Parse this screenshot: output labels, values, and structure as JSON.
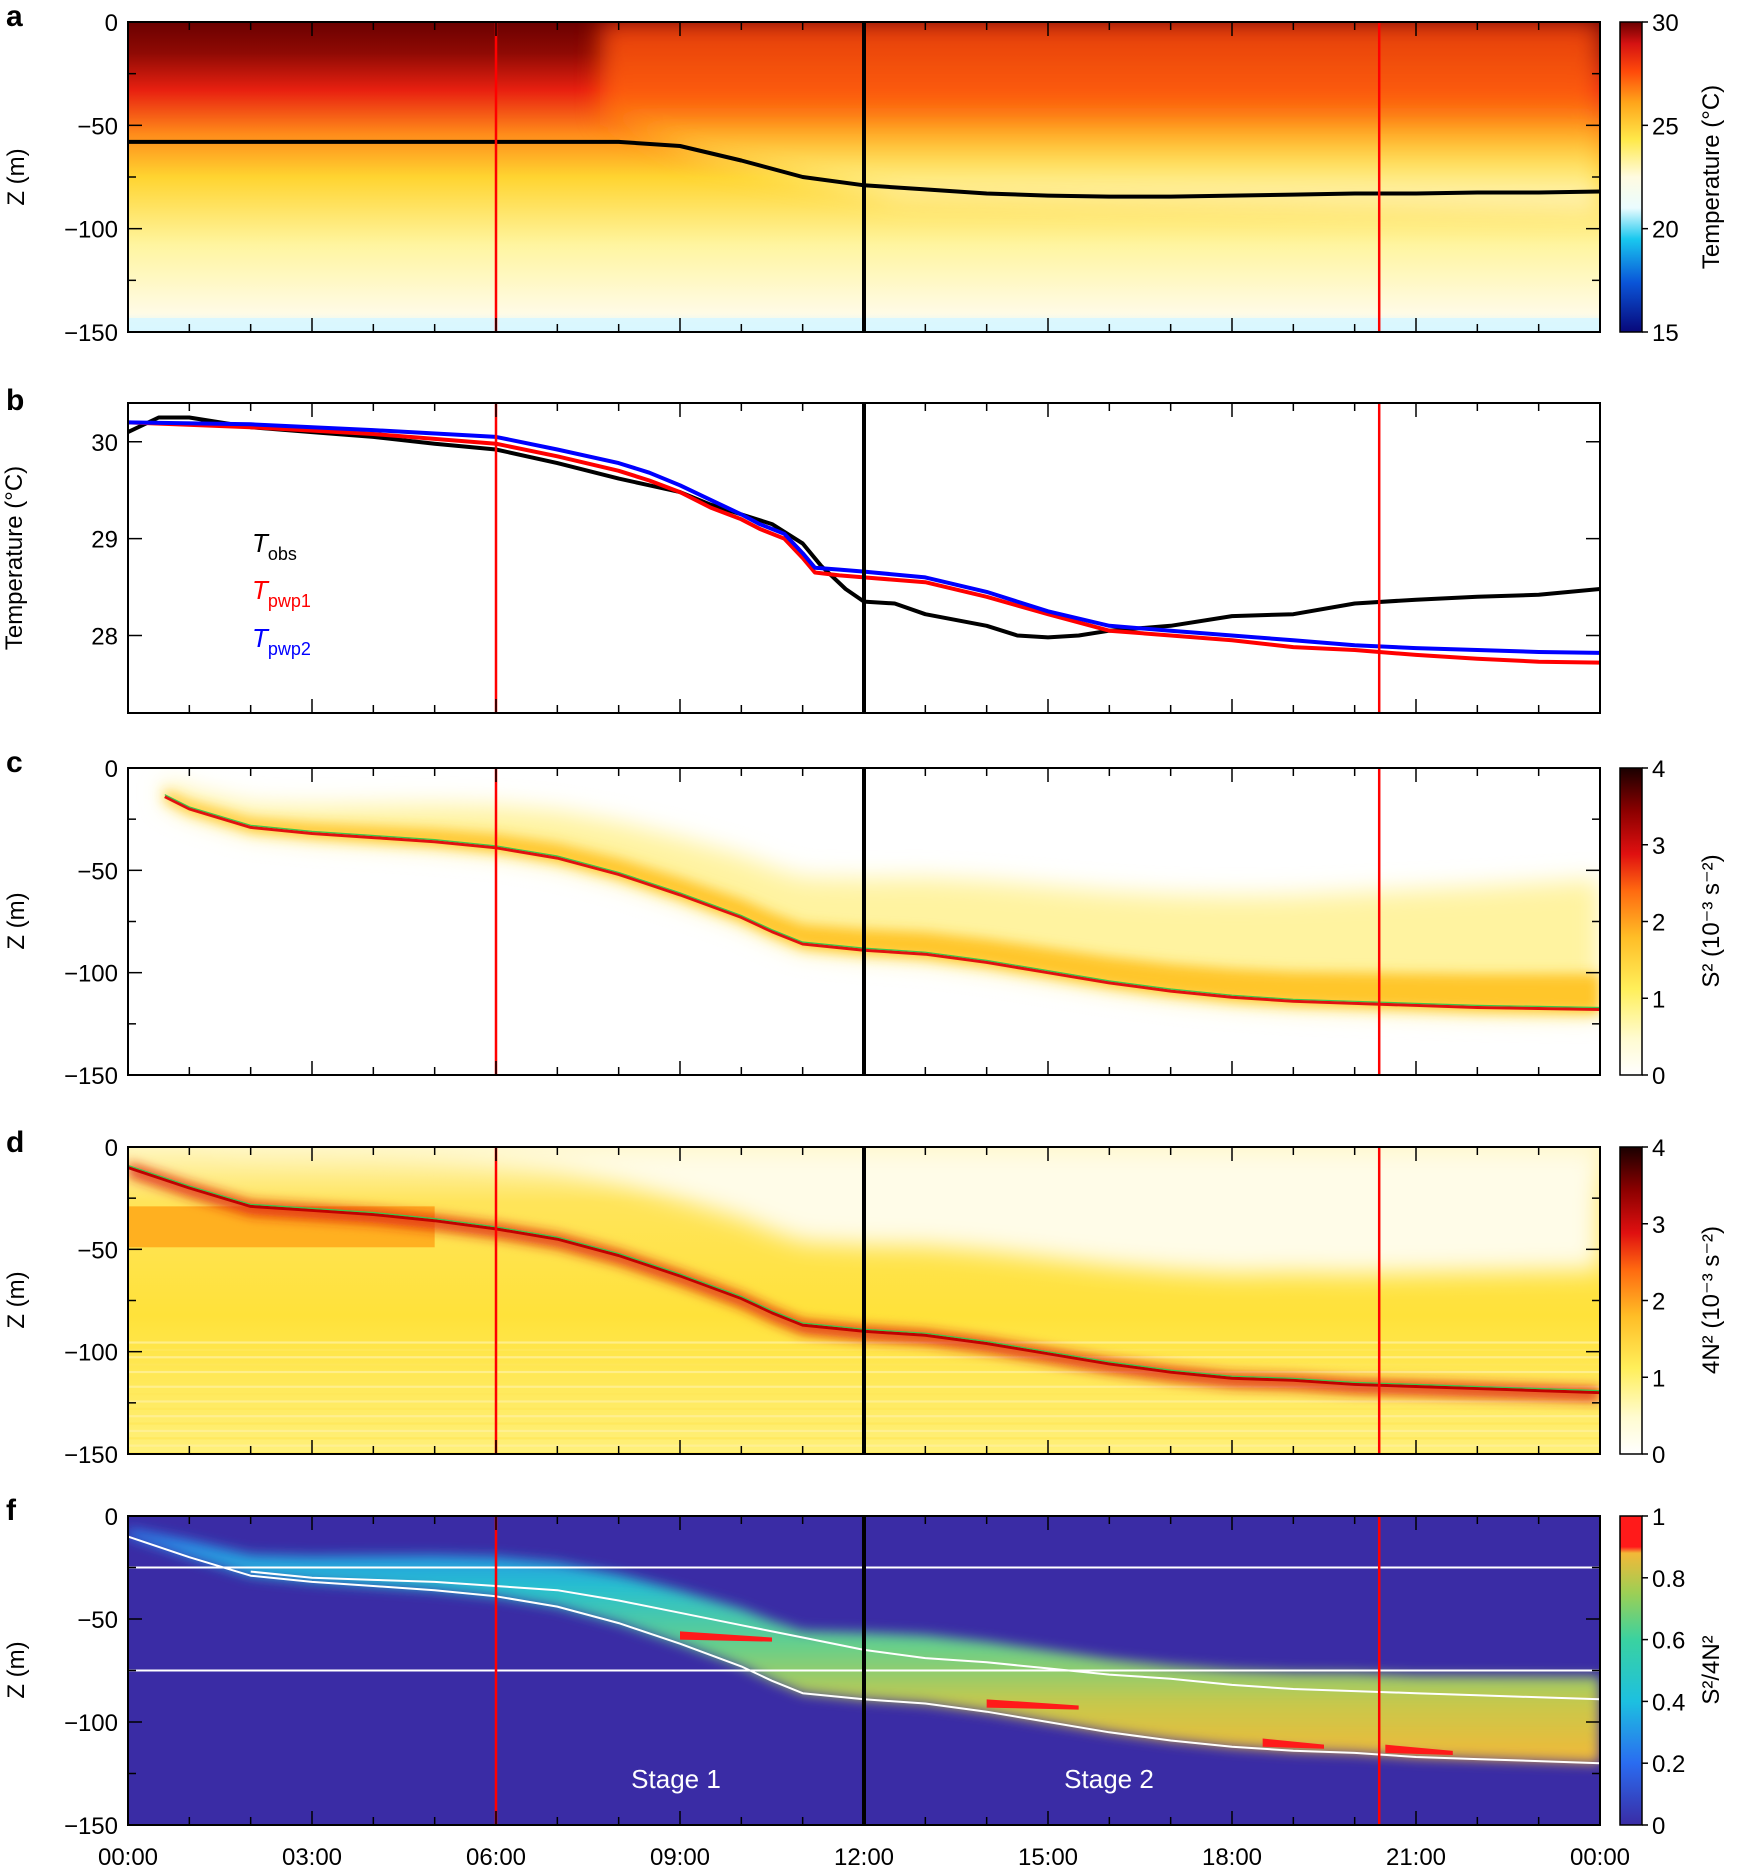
{
  "chart_data": [
    {
      "panel": "a",
      "type": "heatmap",
      "ylabel": "Z (m)",
      "xlim_hours": [
        0,
        24
      ],
      "ylim": [
        -150,
        0
      ],
      "yticks": [
        0,
        -50,
        -100,
        -150
      ],
      "colorbar": {
        "label": "Temperature (°C)",
        "range": [
          15,
          30
        ],
        "ticks": [
          30,
          25,
          20,
          15
        ]
      },
      "series": [
        {
          "name": "mixed layer depth",
          "color": "#000000",
          "x": [
            0,
            1,
            2,
            3,
            4,
            5,
            6,
            7,
            8,
            9,
            10,
            11,
            12,
            13,
            14,
            15,
            16,
            17,
            18,
            19,
            20,
            21,
            22,
            23,
            24
          ],
          "y": [
            -58,
            -58,
            -58,
            -58,
            -58,
            -58,
            -58,
            -58,
            -58,
            -60,
            -67,
            -75,
            -79,
            -81,
            -83,
            -84,
            -84.5,
            -84.5,
            -84,
            -83.5,
            -83,
            -83,
            -82.5,
            -82.5,
            -82
          ]
        }
      ]
    },
    {
      "panel": "b",
      "type": "line",
      "ylabel": "Temperature (°C)",
      "ylim": [
        27.2,
        30.4
      ],
      "yticks": [
        30,
        29,
        28
      ],
      "series": [
        {
          "name": "T_obs",
          "label_main": "T",
          "label_sub": "obs",
          "color": "#000000",
          "x": [
            0,
            0.5,
            1,
            1.5,
            2,
            3,
            4,
            5,
            6,
            7,
            8,
            8.5,
            9,
            9.5,
            10,
            10.5,
            11,
            11.3,
            11.7,
            12,
            12.5,
            13,
            14,
            14.5,
            15,
            15.5,
            16,
            17,
            18,
            19,
            20,
            21,
            22,
            23,
            24
          ],
          "y": [
            30.1,
            30.25,
            30.25,
            30.2,
            30.15,
            30.1,
            30.05,
            29.98,
            29.92,
            29.78,
            29.62,
            29.55,
            29.48,
            29.35,
            29.25,
            29.15,
            28.95,
            28.72,
            28.48,
            28.35,
            28.33,
            28.22,
            28.1,
            28.0,
            27.98,
            28.0,
            28.05,
            28.1,
            28.2,
            28.22,
            28.33,
            28.37,
            28.4,
            28.42,
            28.48
          ]
        },
        {
          "name": "T_pwp1",
          "label_main": "T",
          "label_sub": "pwp1",
          "color": "#ff0000",
          "x": [
            0,
            2,
            4,
            6,
            7,
            8,
            8.5,
            9,
            9.5,
            10,
            10.3,
            10.7,
            11,
            11.2,
            11.6,
            12,
            13,
            14,
            15,
            16,
            17,
            18,
            19,
            20,
            21,
            22,
            23,
            24
          ],
          "y": [
            30.2,
            30.15,
            30.08,
            29.98,
            29.85,
            29.7,
            29.6,
            29.48,
            29.32,
            29.2,
            29.1,
            29.0,
            28.8,
            28.65,
            28.62,
            28.6,
            28.55,
            28.4,
            28.22,
            28.05,
            28.0,
            27.95,
            27.88,
            27.85,
            27.8,
            27.76,
            27.73,
            27.72
          ]
        },
        {
          "name": "T_pwp2",
          "label_main": "T",
          "label_sub": "pwp2",
          "color": "#0000ff",
          "x": [
            0,
            2,
            4,
            6,
            7,
            8,
            8.5,
            9,
            9.5,
            10,
            10.3,
            10.7,
            11,
            11.2,
            11.6,
            12,
            13,
            14,
            15,
            16,
            17,
            18,
            19,
            20,
            21,
            22,
            23,
            24
          ],
          "y": [
            30.2,
            30.18,
            30.12,
            30.05,
            29.92,
            29.78,
            29.68,
            29.55,
            29.4,
            29.25,
            29.15,
            29.05,
            28.85,
            28.7,
            28.68,
            28.66,
            28.6,
            28.45,
            28.25,
            28.1,
            28.05,
            28.0,
            27.95,
            27.9,
            27.87,
            27.85,
            27.83,
            27.82
          ]
        }
      ]
    },
    {
      "panel": "c",
      "type": "heatmap",
      "ylabel": "Z (m)",
      "ylim": [
        -150,
        0
      ],
      "yticks": [
        0,
        -50,
        -100,
        -150
      ],
      "colorbar": {
        "label": "S² (10⁻³ s⁻²)",
        "range": [
          0,
          4
        ],
        "ticks": [
          4,
          3,
          2,
          1,
          0
        ]
      },
      "series": [
        {
          "name": "shear maximum",
          "color": "#e01010",
          "x": [
            0.6,
            1,
            2,
            3,
            4,
            5,
            6,
            7,
            8,
            9,
            10,
            10.5,
            11,
            12,
            13,
            14,
            15,
            16,
            17,
            18,
            19,
            20,
            21,
            22,
            23,
            24
          ],
          "y": [
            -14,
            -20,
            -29,
            -32,
            -34,
            -36,
            -39,
            -44,
            -52,
            -62,
            -73,
            -80,
            -86,
            -89,
            -91,
            -95,
            -100,
            -105,
            -109,
            -112,
            -114,
            -115,
            -116,
            -117,
            -117.5,
            -118
          ]
        }
      ]
    },
    {
      "panel": "d",
      "type": "heatmap",
      "ylabel": "Z (m)",
      "ylim": [
        -150,
        0
      ],
      "yticks": [
        0,
        -50,
        -100,
        -150
      ],
      "colorbar": {
        "label": "4N² (10⁻³ s⁻²)",
        "range": [
          0,
          4
        ],
        "ticks": [
          4,
          3,
          2,
          1,
          0
        ]
      },
      "series": [
        {
          "name": "stratification maximum",
          "color": "#c00000",
          "x": [
            0,
            1,
            2,
            3,
            4,
            5,
            6,
            7,
            8,
            9,
            10,
            10.5,
            11,
            12,
            13,
            14,
            15,
            16,
            17,
            18,
            19,
            20,
            21,
            22,
            23,
            24
          ],
          "y": [
            -10,
            -20,
            -29,
            -31,
            -33,
            -36,
            -40,
            -45,
            -53,
            -63,
            -74,
            -81,
            -87,
            -90,
            -92,
            -96,
            -101,
            -106,
            -110,
            -113,
            -114,
            -116,
            -117,
            -118,
            -119,
            -120
          ]
        }
      ]
    },
    {
      "panel": "f",
      "type": "heatmap",
      "ylabel": "Z (m)",
      "ylim": [
        -150,
        0
      ],
      "yticks": [
        0,
        -50,
        -100,
        -150
      ],
      "colorbar": {
        "label": "S²/4N²",
        "range": [
          0,
          1
        ],
        "ticks": [
          1,
          0.8,
          0.6,
          0.4,
          0.2,
          0
        ]
      },
      "reference_depths": [
        -25,
        -75
      ],
      "annotations": [
        "Stage 1",
        "Stage 2"
      ],
      "series": [
        {
          "name": "mixed layer base",
          "color": "#ffffff",
          "x": [
            0,
            1,
            2,
            3,
            4,
            5,
            6,
            7,
            8,
            9,
            10,
            10.5,
            11,
            12,
            13,
            14,
            15,
            16,
            17,
            18,
            19,
            20,
            21,
            22,
            23,
            24
          ],
          "y": [
            -10,
            -20,
            -29,
            -32,
            -34,
            -36,
            -39,
            -44,
            -52,
            -62,
            -73,
            -80,
            -86,
            -89,
            -91,
            -95,
            -100,
            -105,
            -109,
            -112,
            -114,
            -115,
            -117,
            -118,
            -119,
            -120
          ]
        },
        {
          "name": "ratio contour",
          "color": "#ffffff",
          "x": [
            2,
            3,
            4,
            5,
            6,
            7,
            8,
            9,
            10,
            11,
            12,
            13,
            14,
            15,
            16,
            17,
            18,
            19,
            20,
            21,
            22,
            23,
            24
          ],
          "y": [
            -27,
            -30,
            -31,
            -32,
            -34,
            -36,
            -41,
            -47,
            -53,
            -59,
            -65,
            -69,
            -71,
            -74,
            -77,
            -79,
            -82,
            -84,
            -85,
            -86,
            -87,
            -88,
            -89
          ]
        }
      ]
    }
  ],
  "shared_x": {
    "tick_labels": [
      "00:00",
      "03:00",
      "06:00",
      "09:00",
      "12:00",
      "15:00",
      "18:00",
      "21:00",
      "00:00"
    ],
    "tick_hours": [
      0,
      3,
      6,
      9,
      12,
      15,
      18,
      21,
      24
    ],
    "minor_step_hours": 1
  },
  "vertical_markers": [
    {
      "hour": 6.0,
      "color": "#ff0000"
    },
    {
      "hour": 12.0,
      "color": "#000000"
    },
    {
      "hour": 20.4,
      "color": "#ff0000"
    }
  ],
  "colors": {
    "temperature_scale": [
      "#08087a",
      "#0a55d8",
      "#19c8ef",
      "#eafcff",
      "#fffbe0",
      "#ffe94a",
      "#ffa51a",
      "#ff4a0a",
      "#d51212",
      "#6b0000"
    ],
    "shear_scale": [
      "#ffffff",
      "#fffbd0",
      "#ffef5a",
      "#ffbd26",
      "#ff6a10",
      "#e01010",
      "#8c0000",
      "#1a0000"
    ],
    "ratio_scale": [
      "#3a2ca5",
      "#2a6cf0",
      "#1dc0e0",
      "#3ad2a0",
      "#9ccf55",
      "#f3b838",
      "#ff1a1a"
    ]
  }
}
